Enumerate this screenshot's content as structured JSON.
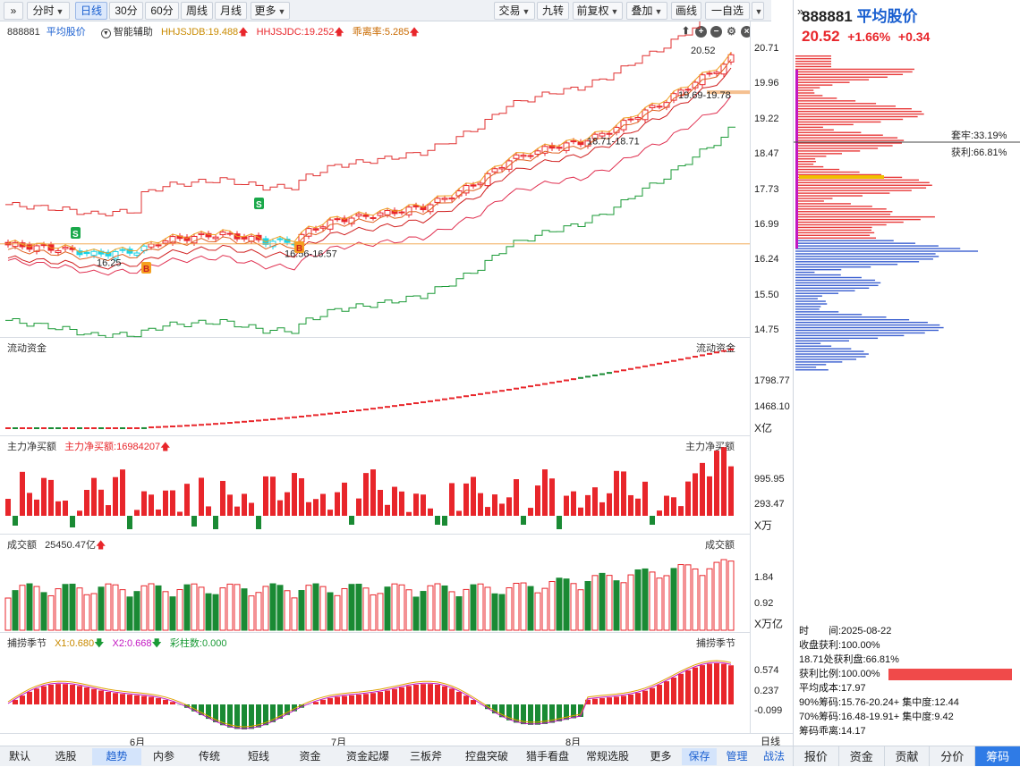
{
  "toolbar": {
    "collapse": "»",
    "intraday": "分时",
    "daily": "日线",
    "m30": "30分",
    "m60": "60分",
    "weekly": "周线",
    "monthly": "月线",
    "more": "更多",
    "trade": "交易",
    "nine": "九转",
    "fq": "前复权",
    "overlay": "叠加",
    "draw": "画线",
    "watch": "一自选"
  },
  "stock": {
    "code": "888881",
    "name": "平均股价",
    "price": "20.52",
    "pct": "+1.66%",
    "chg": "+0.34"
  },
  "main": {
    "code": "888881",
    "name": "平均股价",
    "assist": "智能辅助",
    "ind1": "HHJSJDB:19.488",
    "ind2": "HHJSJDC:19.252",
    "ind3": "乖离率:5.285",
    "yaxis": [
      "20.71",
      "19.96",
      "19.22",
      "18.47",
      "17.73",
      "16.99",
      "16.24",
      "15.50",
      "14.75"
    ],
    "annot": [
      "20.52",
      "19.69-19.78",
      "18.71-18.71",
      "16.56-16.57",
      "16.25"
    ],
    "s_marker": "S",
    "b_marker": "B"
  },
  "flow": {
    "title": "流动资金",
    "ylabels": [
      "1798.77",
      "1468.10"
    ],
    "unit": "X亿"
  },
  "net": {
    "title": "主力净买额",
    "value": "主力净买额:16984207",
    "ylabels": [
      "995.95",
      "293.47"
    ],
    "unit": "X万"
  },
  "vol": {
    "title": "成交额",
    "value": "25450.47亿",
    "ylabels": [
      "1.84",
      "0.92"
    ],
    "unit": "X万亿"
  },
  "season": {
    "title": "捕捞季节",
    "x1": "X1:0.680",
    "x2": "X2:0.668",
    "bar": "彩柱数:0.000",
    "ylabels": [
      "0.574",
      "0.237",
      "-0.099"
    ]
  },
  "months": [
    "6月",
    "7月",
    "8月"
  ],
  "period": "日线",
  "bottom_tabs": [
    "默认",
    "选股",
    "趋势",
    "内参",
    "传统",
    "短线",
    "资金",
    "资金起爆",
    "三板斧",
    "控盘突破",
    "猎手看盘",
    "常规选股",
    "更多",
    "保存",
    "管理",
    "战法"
  ],
  "side": {
    "trapped": "套牢:33.19%",
    "profit": "获利:66.81%",
    "info": [
      "时　　间:2025-08-22",
      "收盘获利:100.00%",
      "18.71处获利盘:66.81%",
      "获利比例:100.00%",
      "平均成本:17.97",
      "90%筹码:15.76-20.24+ 集中度:12.44",
      "70%筹码:16.48-19.91+ 集中度:9.42",
      "筹码乖离:14.17"
    ],
    "profit_ratio": 1.0,
    "tabs": [
      "报价",
      "资金",
      "贡献",
      "分价",
      "筹码"
    ]
  },
  "colors": {
    "up": "#e8262b",
    "down": "#1a8a34",
    "accent": "#1a5fd0"
  }
}
